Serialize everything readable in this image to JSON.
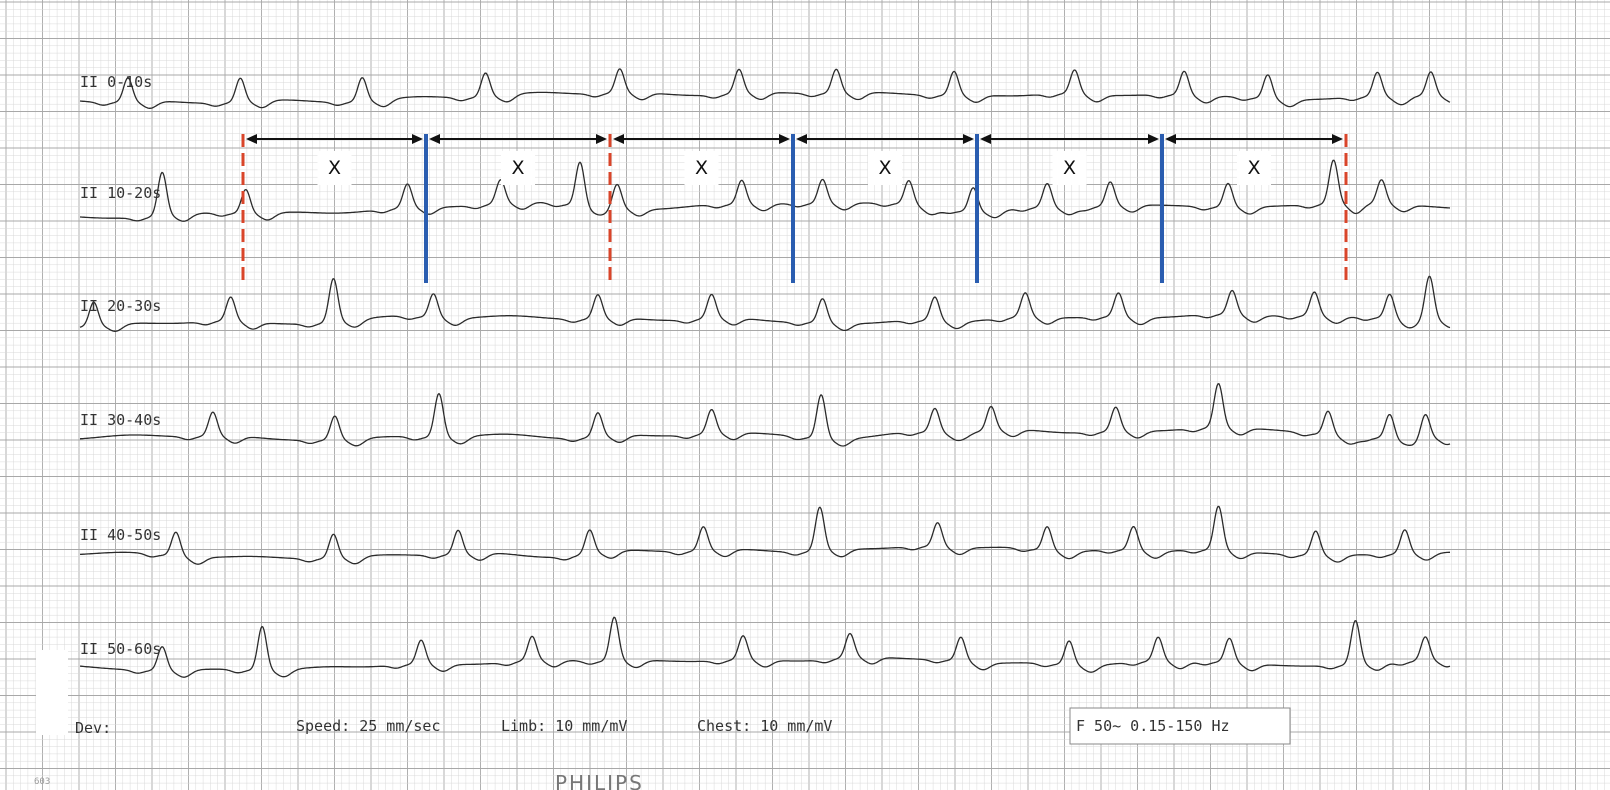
{
  "strips": [
    {
      "label": "II 0-10s",
      "beats": [
        0.035,
        0.117,
        0.206,
        0.296,
        0.394,
        0.481,
        0.552,
        0.638,
        0.726,
        0.806,
        0.867,
        0.947,
        0.986
      ],
      "tall": [
        0.55,
        0.4
      ]
    },
    {
      "label": "II 10-20s",
      "beats": [
        0.06,
        0.121,
        0.239,
        0.307,
        0.365,
        0.392,
        0.483,
        0.542,
        0.605,
        0.652,
        0.706,
        0.752,
        0.838,
        0.915,
        0.95
      ],
      "tall": [
        0.06,
        0.365,
        0.915
      ]
    },
    {
      "label": "II 20-30s",
      "beats": [
        0.01,
        0.11,
        0.185,
        0.258,
        0.378,
        0.461,
        0.542,
        0.624,
        0.69,
        0.758,
        0.841,
        0.901,
        0.956,
        0.985
      ],
      "tall": [
        0.185,
        0.985
      ]
    },
    {
      "label": "II 30-40s",
      "beats": [
        0.097,
        0.186,
        0.262,
        0.378,
        0.461,
        0.541,
        0.624,
        0.665,
        0.756,
        0.831,
        0.911,
        0.956,
        0.982
      ],
      "tall": [
        0.262,
        0.541,
        0.831
      ]
    },
    {
      "label": "II 40-50s",
      "beats": [
        0.07,
        0.185,
        0.276,
        0.372,
        0.455,
        0.54,
        0.626,
        0.706,
        0.769,
        0.831,
        0.902,
        0.967
      ],
      "tall": [
        0.54,
        0.831
      ]
    },
    {
      "label": "II 50-60s",
      "beats": [
        0.06,
        0.133,
        0.249,
        0.33,
        0.39,
        0.484,
        0.562,
        0.643,
        0.722,
        0.787,
        0.839,
        0.931,
        0.982
      ],
      "tall": [
        0.133,
        0.39,
        0.931
      ]
    }
  ],
  "annotation": {
    "segment_label": "X",
    "segment_count": 6,
    "marker_sequence": [
      "red-dashed",
      "blue-solid",
      "red-dashed",
      "blue-solid",
      "blue-solid",
      "blue-solid",
      "red-dashed"
    ]
  },
  "footer": {
    "dev": "Dev:",
    "speed": "Speed: 25 mm/sec",
    "limb": "Limb: 10 mm/mV",
    "chest": "Chest: 10 mm/mV",
    "filter": "F 50~ 0.15-150 Hz",
    "brand": "PHILIPS",
    "page_number": "603"
  },
  "colors": {
    "grid_minor": "#d9d9d9",
    "grid_major": "#a8a8a8",
    "trace": "#2b2b2b",
    "red_marker": "#d9452a",
    "blue_marker": "#2a5db0",
    "arrow": "#111111"
  }
}
